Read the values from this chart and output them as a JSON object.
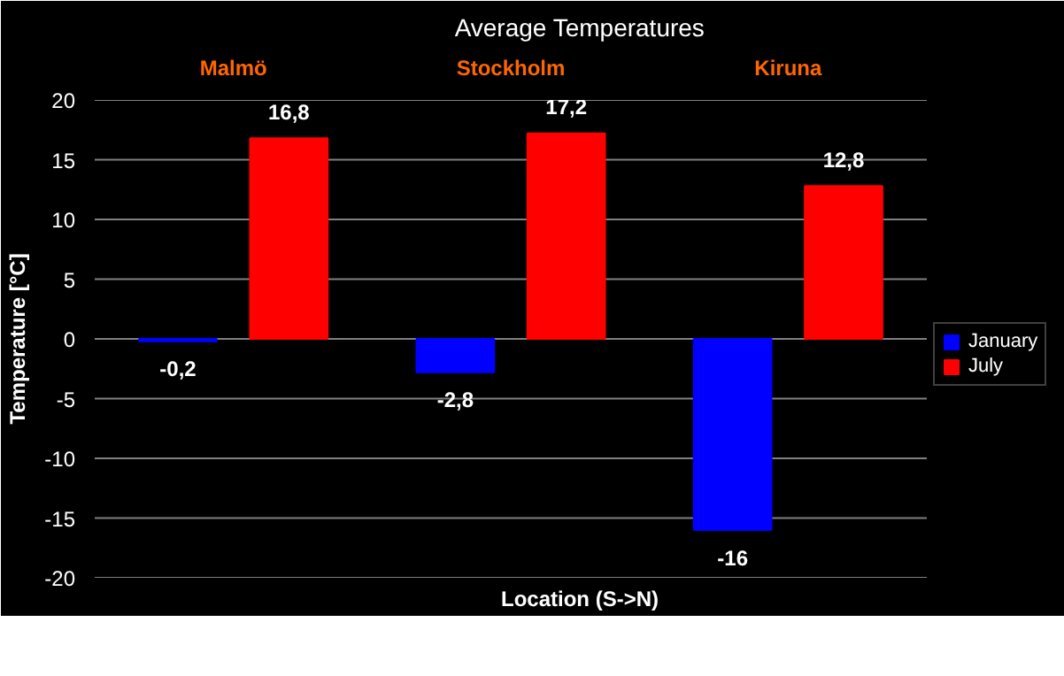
{
  "chart_data": {
    "type": "bar",
    "title": "Average Temperatures",
    "xlabel": "Location (S->N)",
    "ylabel": "Temperature [°C]",
    "categories": [
      "Malmö",
      "Stockholm",
      "Kiruna"
    ],
    "series": [
      {
        "name": "January",
        "color": "#0000ff",
        "values": [
          -0.2,
          -2.8,
          -16
        ],
        "value_labels": [
          "-0,2",
          "-2,8",
          "-16"
        ]
      },
      {
        "name": "July",
        "color": "#ff0000",
        "values": [
          16.8,
          17.2,
          12.8
        ],
        "value_labels": [
          "16,8",
          "17,2",
          "12,8"
        ]
      }
    ],
    "ylim": [
      -20,
      20
    ],
    "yticks": [
      -20,
      -15,
      -10,
      -5,
      0,
      5,
      10,
      15,
      20
    ],
    "grid": "y",
    "legend": "right"
  }
}
